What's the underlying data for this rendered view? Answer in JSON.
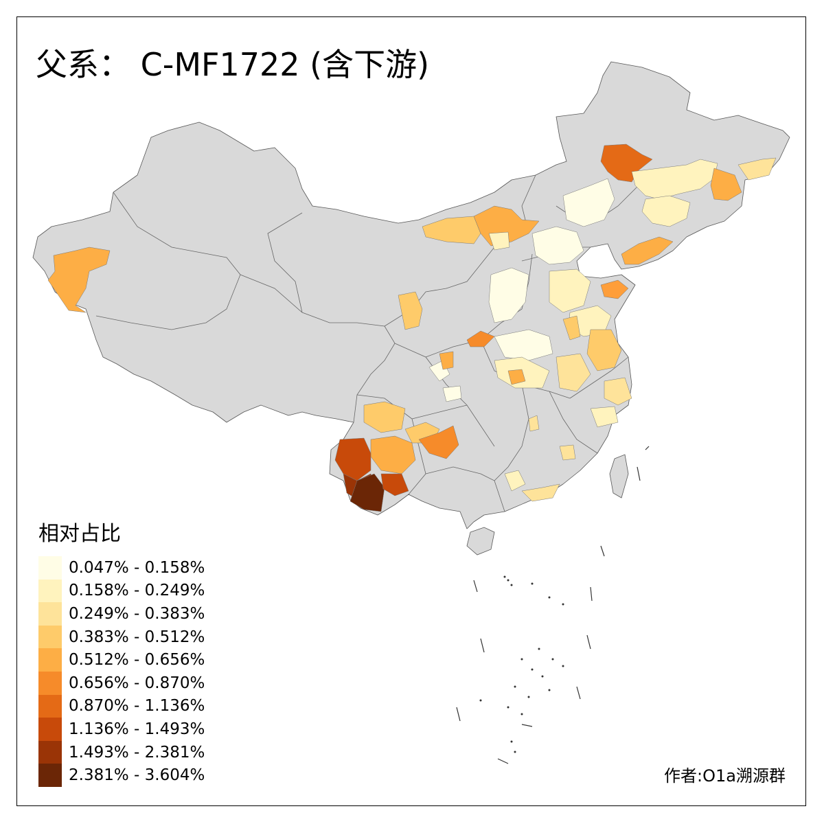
{
  "title": "父系： C-MF1722 (含下游)",
  "legend": {
    "title": "相对占比",
    "items": [
      {
        "label": "0.047% - 0.158%",
        "color": "#FFFDE6"
      },
      {
        "label": "0.158% - 0.249%",
        "color": "#FFF3BE"
      },
      {
        "label": "0.249% - 0.383%",
        "color": "#FEE39A"
      },
      {
        "label": "0.383% - 0.512%",
        "color": "#FECB6A"
      },
      {
        "label": "0.512% - 0.656%",
        "color": "#FDAE45"
      },
      {
        "label": "0.656% - 0.870%",
        "color": "#F68B2A"
      },
      {
        "label": "0.870% - 1.136%",
        "color": "#E46A16"
      },
      {
        "label": "1.136% - 1.493%",
        "color": "#C84A0A"
      },
      {
        "label": "1.493% - 2.381%",
        "color": "#9A3406"
      },
      {
        "label": "2.381% - 3.604%",
        "color": "#6B2606"
      }
    ]
  },
  "credit": "作者:O1a溯源群",
  "base_color": "#D9D9D9"
}
